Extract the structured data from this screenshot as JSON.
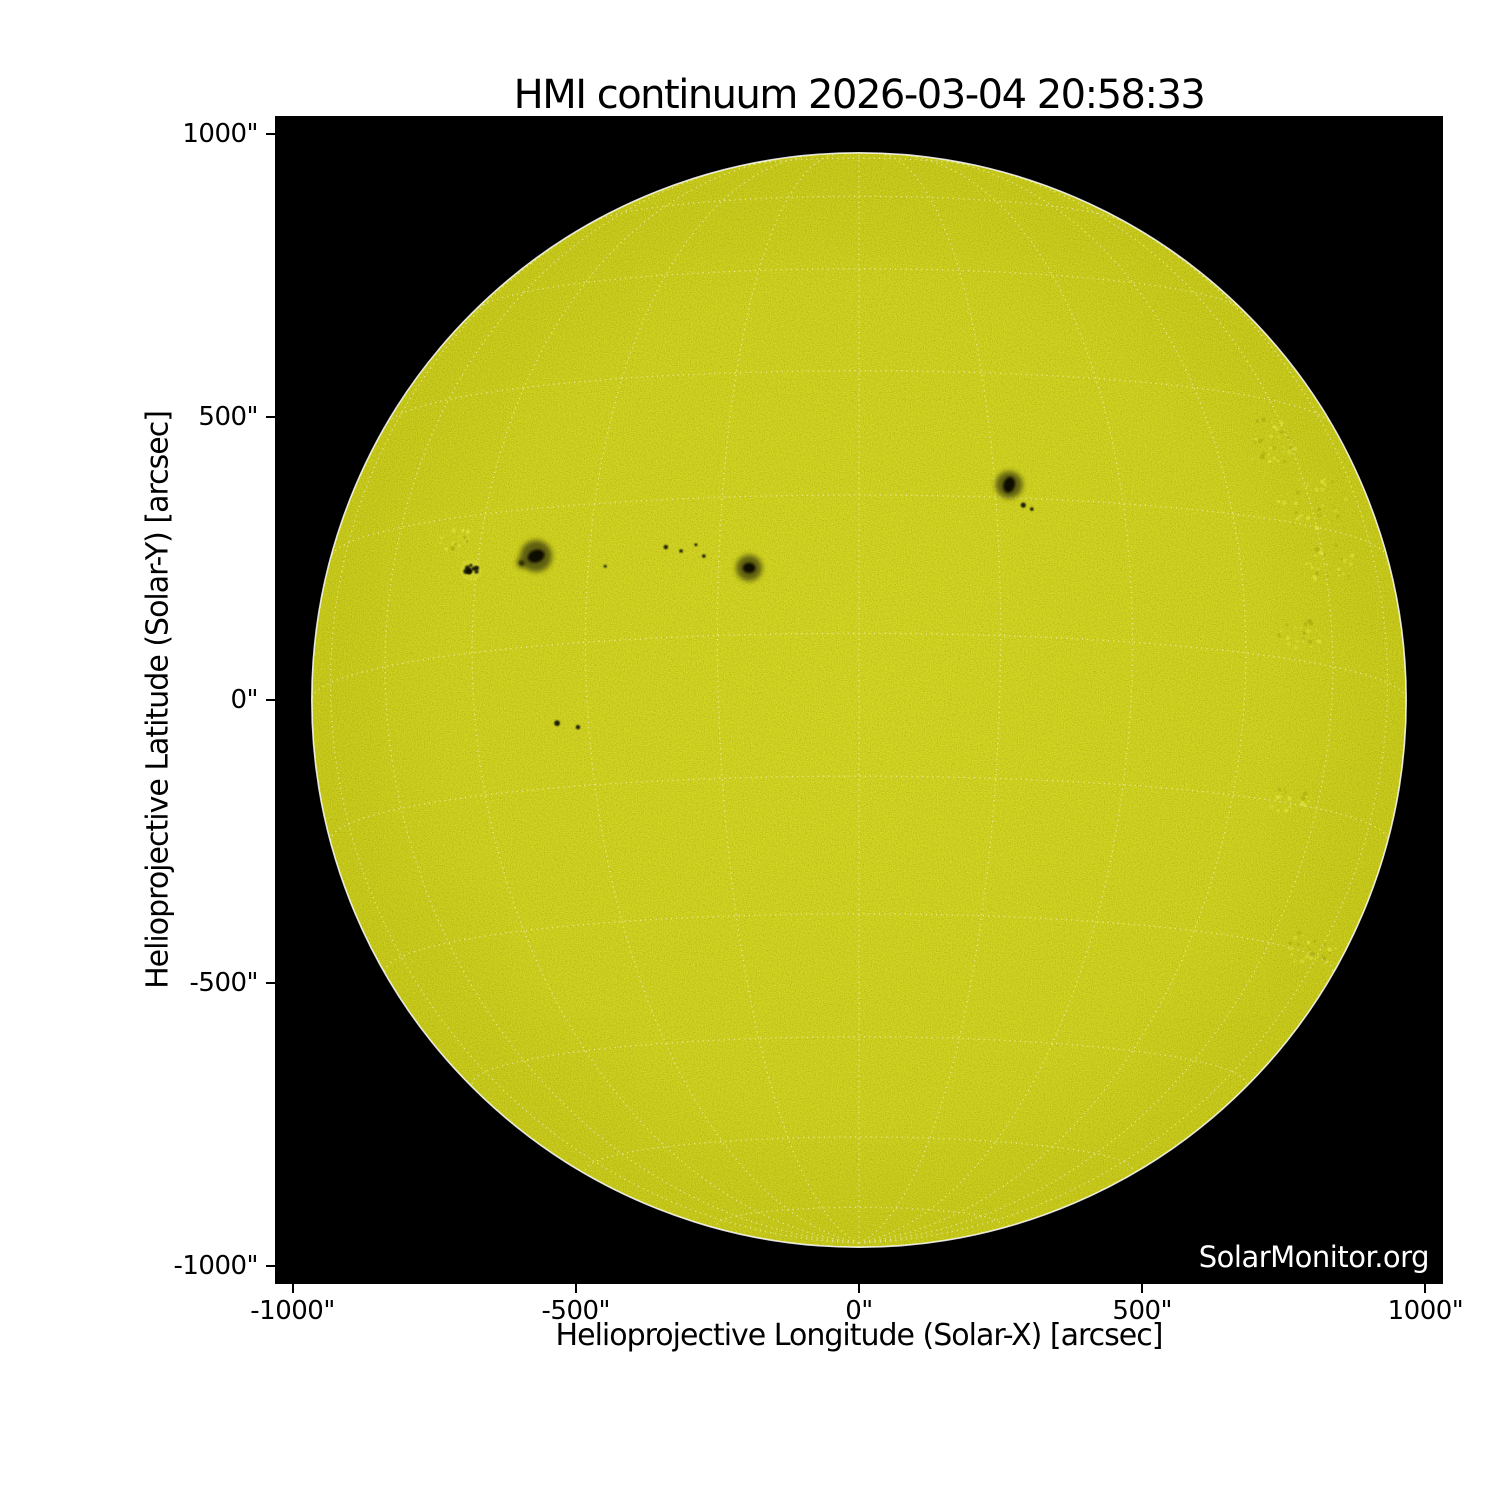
{
  "title": "HMI continuum 2026-03-04 20:58:33",
  "watermark": "SolarMonitor.org",
  "axes": {
    "x_label": "Helioprojective Longitude (Solar-X) [arcsec]",
    "y_label": "Helioprojective Latitude (Solar-Y) [arcsec]",
    "x_ticks": [
      {
        "value": -1000,
        "label": "-1000\""
      },
      {
        "value": -500,
        "label": "-500\""
      },
      {
        "value": 0,
        "label": "0\""
      },
      {
        "value": 500,
        "label": "500\""
      },
      {
        "value": 1000,
        "label": "1000\""
      }
    ],
    "y_ticks": [
      {
        "value": 1000,
        "label": "1000\""
      },
      {
        "value": 500,
        "label": "500\""
      },
      {
        "value": 0,
        "label": "0\""
      },
      {
        "value": -500,
        "label": "-500\""
      },
      {
        "value": -1000,
        "label": "-1000\""
      }
    ],
    "range_arcsec": [
      -1031,
      1031
    ]
  },
  "colors": {
    "figure_bg": "#ffffff",
    "plot_bg": "#000000",
    "disk_center": "#d5d720",
    "disk_mid": "#d0d21c",
    "disk_edge": "#c8ca16",
    "grain_dark": "#8a8c05",
    "grain_light": "#f2f55e",
    "grid": "#ffffff",
    "limb": "#ffffff",
    "umbra": "#0a0a04",
    "penumbra": "#50500f",
    "pore": "#16160a",
    "facula_bright": "#eef257",
    "facula_dark": "#9a9c08",
    "text": "#000000",
    "watermark_color": "#ffffff"
  },
  "chart_data": {
    "type": "heatmap",
    "subtype": "solar-continuum-disk-map",
    "title": "HMI continuum 2026-03-04 20:58:33",
    "instrument": "HMI continuum",
    "observation_time": "2026-03-04 20:58:33",
    "xlabel": "Helioprojective Longitude (Solar-X) [arcsec]",
    "ylabel": "Helioprojective Latitude (Solar-Y) [arcsec]",
    "xlim": [
      -1031,
      1031
    ],
    "ylim": [
      -1031,
      1031
    ],
    "grid": true,
    "disk": {
      "radius_arcsec": 966,
      "graticule_step_deg": 15,
      "b0_deg": -7,
      "graticule_style": "dotted-white"
    },
    "sunspots": [
      {
        "name": "speckled-plage-spot-far-west",
        "x": -685,
        "y": 229,
        "type": "cluster",
        "r": 19
      },
      {
        "name": "companion-spot-west",
        "x": -595,
        "y": 242,
        "type": "spot",
        "pen_r": 9,
        "umb_rx": 5,
        "umb_ry": 4,
        "rot": 0
      },
      {
        "name": "main-spot-west",
        "x": -570,
        "y": 254,
        "type": "spot",
        "pen_r": 28,
        "umb_rx": 15,
        "umb_ry": 11,
        "rot": -20
      },
      {
        "name": "mid-disk-spot",
        "x": -194,
        "y": 233,
        "type": "spot",
        "pen_r": 23,
        "umb_rx": 11,
        "umb_ry": 9,
        "rot": 0
      },
      {
        "name": "east-spot",
        "x": 265,
        "y": 380,
        "type": "spot",
        "pen_r": 24,
        "umb_rx": 10,
        "umb_ry": 14,
        "rot": 15
      }
    ],
    "pores": [
      {
        "x": -341,
        "y": 270,
        "r": 3
      },
      {
        "x": -314,
        "y": 263,
        "r": 2.5
      },
      {
        "x": -288,
        "y": 274,
        "r": 2
      },
      {
        "x": -274,
        "y": 254,
        "r": 2.5
      },
      {
        "x": -448,
        "y": 236,
        "r": 2
      },
      {
        "x": -533,
        "y": -41,
        "r": 4
      },
      {
        "x": -496,
        "y": -48,
        "r": 3
      },
      {
        "x": 290,
        "y": 344,
        "r": 3.5
      },
      {
        "x": 305,
        "y": 337,
        "r": 2.5
      }
    ],
    "faculae": [
      {
        "x": 727,
        "y": 459,
        "r": 55
      },
      {
        "x": 800,
        "y": 350,
        "r": 60
      },
      {
        "x": 833,
        "y": 240,
        "r": 45
      },
      {
        "x": 780,
        "y": 120,
        "r": 40
      },
      {
        "x": 760,
        "y": -180,
        "r": 35
      },
      {
        "x": 798,
        "y": -441,
        "r": 45
      },
      {
        "x": -711,
        "y": 282,
        "r": 30
      }
    ]
  }
}
